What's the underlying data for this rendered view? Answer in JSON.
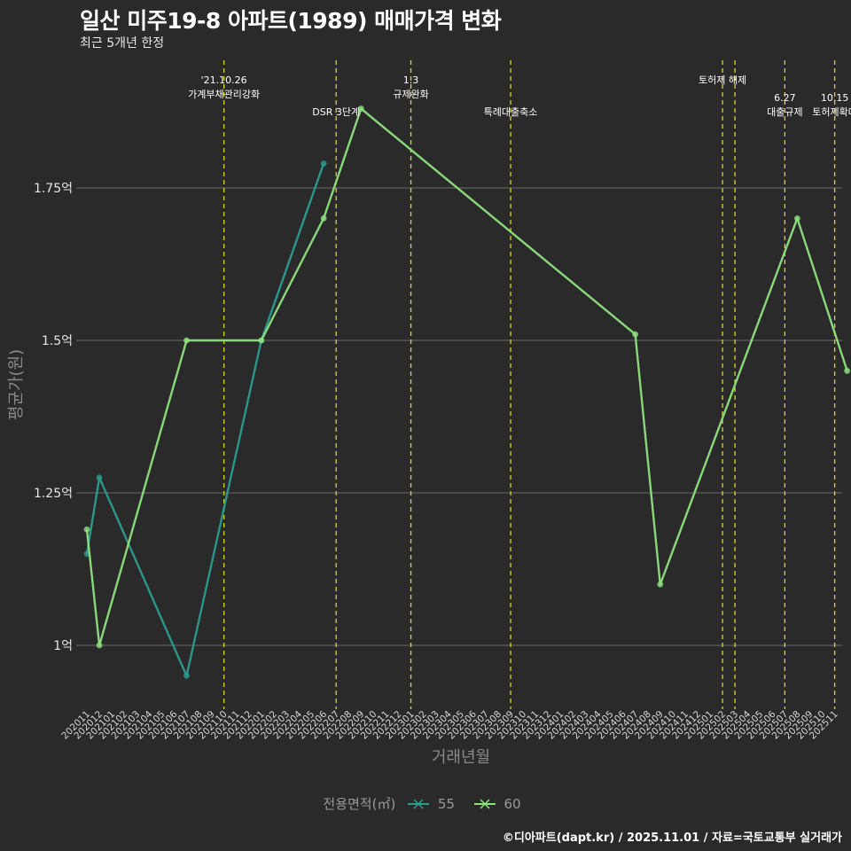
{
  "header": {
    "title": "일산 미주19-8 아파트(1989) 매매가격 변화",
    "subtitle": "최근 5개년 한정"
  },
  "caption": "©디아파트(dapt.kr) / 2025.11.01 / 자료=국토교통부 실거래가",
  "legend": {
    "title": "전용면적(㎡)",
    "items": [
      {
        "label": "55",
        "color": "#2a9d8f"
      },
      {
        "label": "60",
        "color": "#8ee27e"
      }
    ]
  },
  "colors": {
    "background": "#2b2a2b",
    "grid": "#6a6a6a",
    "event_line": "#d8d820"
  },
  "chart_data": {
    "type": "line",
    "title": "일산 미주19-8 아파트(1989) 매매가격 변화",
    "xlabel": "거래년월",
    "ylabel": "평균가(원)",
    "ylim": [
      0.9,
      1.95
    ],
    "y_ticks": [
      {
        "value": 1.0,
        "label": "1억"
      },
      {
        "value": 1.25,
        "label": "1.25억"
      },
      {
        "value": 1.5,
        "label": "1.5억"
      },
      {
        "value": 1.75,
        "label": "1.75억"
      }
    ],
    "x_categories": [
      "202011",
      "202012",
      "202101",
      "202102",
      "202103",
      "202104",
      "202105",
      "202106",
      "202107",
      "202108",
      "202109",
      "202110",
      "202111",
      "202112",
      "202201",
      "202202",
      "202203",
      "202204",
      "202205",
      "202206",
      "202207",
      "202208",
      "202209",
      "202210",
      "202211",
      "202212",
      "202301",
      "202302",
      "202303",
      "202304",
      "202305",
      "202306",
      "202307",
      "202308",
      "202309",
      "202310",
      "202311",
      "202312",
      "202401",
      "202402",
      "202403",
      "202404",
      "202405",
      "202406",
      "202407",
      "202408",
      "202409",
      "202410",
      "202411",
      "202412",
      "202501",
      "202502",
      "202503",
      "202504",
      "202505",
      "202506",
      "202507",
      "202508",
      "202509",
      "202510",
      "202511"
    ],
    "events": [
      {
        "x": "202110",
        "label_lines": [
          "'21.10.26",
          "가계부채관리강화"
        ],
        "row": 0
      },
      {
        "x": "202207",
        "label_lines": [
          "DSR 3단계"
        ],
        "row": 1
      },
      {
        "x": "202301",
        "label_lines": [
          "1.3",
          "규제완화"
        ],
        "row": 0
      },
      {
        "x": "202309",
        "label_lines": [
          "특례대출축소"
        ],
        "row": 1
      },
      {
        "x": "202502",
        "label_lines": [
          "토허제 해제"
        ],
        "row": 0
      },
      {
        "x": "202503",
        "label_lines": [],
        "row": 0
      },
      {
        "x": "202507",
        "label_lines": [
          "6.27",
          "대출규제"
        ],
        "row": 1
      },
      {
        "x": "202511",
        "label_lines": [
          "10.15",
          "토허제확대"
        ],
        "row": 1
      }
    ],
    "series": [
      {
        "name": "55",
        "color": "#2a9d8f",
        "points": [
          {
            "x": "202011",
            "y": 1.15
          },
          {
            "x": "202012",
            "y": 1.275
          },
          {
            "x": "202107",
            "y": 0.95
          },
          {
            "x": "202201",
            "y": 1.5
          },
          {
            "x": "202206",
            "y": 1.79
          }
        ]
      },
      {
        "name": "60",
        "color": "#8ee27e",
        "points": [
          {
            "x": "202011",
            "y": 1.19
          },
          {
            "x": "202012",
            "y": 1.0
          },
          {
            "x": "202107",
            "y": 1.5
          },
          {
            "x": "202201",
            "y": 1.5
          },
          {
            "x": "202206",
            "y": 1.7
          },
          {
            "x": "202209",
            "y": 1.88
          },
          {
            "x": "202407",
            "y": 1.51
          },
          {
            "x": "202409",
            "y": 1.1
          },
          {
            "x": "202508",
            "y": 1.7
          },
          {
            "x": "202512",
            "y": 1.45
          }
        ]
      }
    ]
  }
}
